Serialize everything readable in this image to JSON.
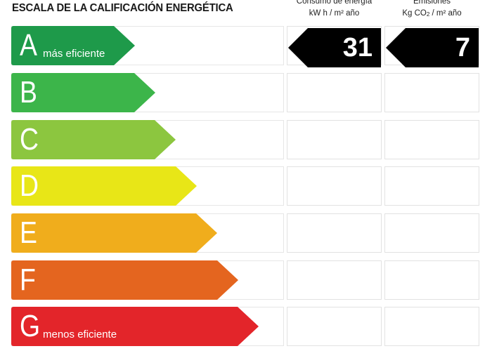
{
  "title": "ESCALA DE LA CALIFICACIÓN ENERGÉTICA",
  "columns": {
    "consumo": {
      "line1": "Consumo de energía",
      "line2": "kW h / m² año"
    },
    "emisiones": {
      "line1": "Emisiones",
      "line2_pre": "Kg CO",
      "line2_sub": "2",
      "line2_post": " / m² año"
    }
  },
  "classes": [
    {
      "letter": "A",
      "label": "más eficiente",
      "color": "#1e9a4a"
    },
    {
      "letter": "B",
      "label": "",
      "color": "#3cb54a"
    },
    {
      "letter": "C",
      "label": "",
      "color": "#8cc63f"
    },
    {
      "letter": "D",
      "label": "",
      "color": "#e8e617"
    },
    {
      "letter": "E",
      "label": "",
      "color": "#f0ad1c"
    },
    {
      "letter": "F",
      "label": "",
      "color": "#e4651f"
    },
    {
      "letter": "G",
      "label": "menos eficiente",
      "color": "#e3252a"
    }
  ],
  "rating": {
    "row": "A",
    "consumo": "31",
    "emisiones": "7"
  }
}
